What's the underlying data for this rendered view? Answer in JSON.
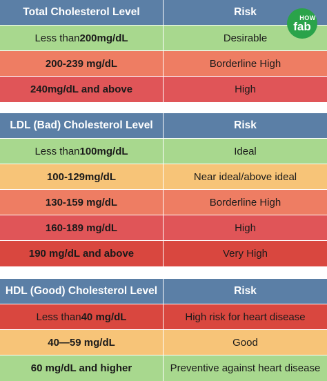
{
  "colors": {
    "header": "#5b7fa6",
    "green": "#a8d88e",
    "orange": "#ee7d63",
    "red": "#e05558",
    "yellow": "#f7c478",
    "darkred": "#d9473f"
  },
  "logo": {
    "brand": "fab",
    "sub": "HOW"
  },
  "tables": [
    {
      "header": {
        "level": "Total Cholesterol Level",
        "risk": "Risk"
      },
      "rows": [
        {
          "prefix": "Less than ",
          "value": "200mg/dL",
          "risk": "Desirable",
          "color": "green"
        },
        {
          "prefix": "",
          "value": "200-239 mg/dL",
          "risk": "Borderline High",
          "color": "orange"
        },
        {
          "prefix": "",
          "value": "240mg/dL and above",
          "risk": "High",
          "color": "red"
        }
      ]
    },
    {
      "header": {
        "level": "LDL (Bad) Cholesterol Level",
        "risk": "Risk"
      },
      "rows": [
        {
          "prefix": "Less than ",
          "value": "100mg/dL",
          "risk": "Ideal",
          "color": "green"
        },
        {
          "prefix": "",
          "value": "100-129mg/dL",
          "risk": "Near ideal/above ideal",
          "color": "yellow"
        },
        {
          "prefix": "",
          "value": "130-159 mg/dL",
          "risk": "Borderline High",
          "color": "orange"
        },
        {
          "prefix": "",
          "value": "160-189 mg/dL",
          "risk": "High",
          "color": "red"
        },
        {
          "prefix": "",
          "value": "190 mg/dL and above",
          "risk": "Very High",
          "color": "darkred"
        }
      ]
    },
    {
      "header": {
        "level": "HDL (Good) Cholesterol Level",
        "risk": "Risk"
      },
      "rows": [
        {
          "prefix": "Less than ",
          "value": "40 mg/dL",
          "risk": "High risk for heart disease",
          "color": "darkred"
        },
        {
          "prefix": "",
          "value": "40—59 mg/dL",
          "risk": "Good",
          "color": "yellow"
        },
        {
          "prefix": "",
          "value": "60 mg/dL and higher",
          "risk": "Preventive against heart disease",
          "color": "green"
        }
      ]
    }
  ]
}
